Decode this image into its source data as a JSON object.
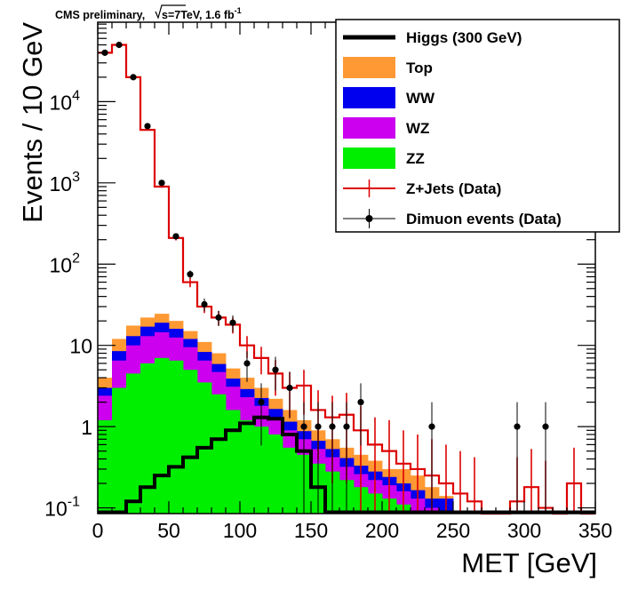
{
  "chart_data": {
    "type": "histogram-stacked",
    "header": "CMS preliminary,",
    "header_lumi": "s=7TeV, 1.6 fb",
    "header_lumi_sup": "-1",
    "xlabel": "MET [GeV]",
    "ylabel": "Events / 10 GeV",
    "xlim": [
      0,
      350
    ],
    "ylim": [
      0.085,
      95000
    ],
    "yscale": "log",
    "x_ticks": [
      0,
      50,
      100,
      150,
      200,
      250,
      300,
      350
    ],
    "x_tick_labels": [
      "0",
      "50",
      "100",
      "150",
      "200",
      "250",
      "300",
      "350"
    ],
    "y_tick_labels": [
      {
        "value": 0.1,
        "base": "10",
        "exp": "-1"
      },
      {
        "value": 1,
        "base": "1",
        "exp": ""
      },
      {
        "value": 10,
        "base": "10",
        "exp": ""
      },
      {
        "value": 100,
        "base": "10",
        "exp": "2"
      },
      {
        "value": 1000,
        "base": "10",
        "exp": "3"
      },
      {
        "value": 10000,
        "base": "10",
        "exp": "4"
      }
    ],
    "bin_edges": [
      0,
      10,
      20,
      30,
      40,
      50,
      60,
      70,
      80,
      90,
      100,
      110,
      120,
      130,
      140,
      150,
      160,
      170,
      180,
      190,
      200,
      210,
      220,
      230,
      240,
      250,
      260,
      270,
      280,
      290,
      300,
      310,
      320,
      330,
      340,
      350
    ],
    "stack": [
      {
        "name": "ZZ",
        "color": "#00ee00",
        "values": [
          1.2,
          3.0,
          4.5,
          6.0,
          7.0,
          6.5,
          5.0,
          3.5,
          2.5,
          1.6,
          1.2,
          1.0,
          0.8,
          0.55,
          0.45,
          0.35,
          0.28,
          0.22,
          0.18,
          0.15,
          0.13,
          0.11,
          0.09,
          0.07,
          0.0,
          0,
          0,
          0,
          0,
          0,
          0,
          0,
          0,
          0,
          0
        ]
      },
      {
        "name": "WZ",
        "color": "#cc00ee",
        "values": [
          1.2,
          3.5,
          5.5,
          7.0,
          7.5,
          6.0,
          4.5,
          3.0,
          2.2,
          1.5,
          1.1,
          0.8,
          0.5,
          0.35,
          0.25,
          0.18,
          0.14,
          0.1,
          0.08,
          0.07,
          0.06,
          0.05,
          0.04,
          0.03,
          0.07,
          0,
          0,
          0,
          0,
          0,
          0,
          0,
          0,
          0,
          0
        ]
      },
      {
        "name": "WW",
        "color": "#0000ee",
        "values": [
          0.6,
          2.0,
          3.0,
          4.0,
          4.5,
          3.5,
          2.5,
          1.8,
          1.2,
          0.8,
          0.6,
          0.45,
          0.35,
          0.25,
          0.18,
          0.14,
          0.11,
          0.09,
          0.07,
          0.06,
          0.05,
          0.04,
          0.035,
          0.03,
          0.06,
          0,
          0,
          0,
          0,
          0,
          0,
          0,
          0,
          0,
          0
        ]
      },
      {
        "name": "Top",
        "color": "#ff9933",
        "values": [
          1.0,
          3.5,
          4.5,
          5.0,
          5.5,
          4.0,
          3.0,
          2.7,
          2.1,
          1.3,
          1.1,
          0.75,
          0.55,
          0.45,
          0.32,
          0.23,
          0.17,
          0.14,
          0.12,
          0.1,
          0.06,
          0.1,
          0.085,
          0.05,
          0.01,
          0,
          0,
          0,
          0,
          0,
          0,
          0,
          0,
          0,
          0
        ]
      }
    ],
    "zjets": {
      "name": "Z+Jets (Data)",
      "color": "#dd0000",
      "values": [
        40000,
        50000,
        20000,
        4500,
        900,
        210,
        60,
        30,
        22,
        18,
        10,
        7,
        4.5,
        3,
        3.2,
        1.6,
        1.3,
        1.4,
        0.9,
        0.6,
        0.5,
        0.35,
        0.3,
        0.25,
        0.2,
        0.15,
        0.12,
        0,
        0,
        0.12,
        0.18,
        0.1,
        0,
        0.2,
        0
      ],
      "errors": [
        200,
        220,
        140,
        70,
        30,
        14,
        8,
        5,
        4.5,
        4,
        3,
        2.6,
        2.1,
        1.7,
        1.8,
        1.2,
        1.1,
        1.2,
        0.9,
        0.7,
        0.7,
        0.55,
        0.5,
        0.45,
        0.4,
        0.35,
        0.3,
        0,
        0,
        0.3,
        0.35,
        0.28,
        0,
        0.35,
        0
      ]
    },
    "higgs": {
      "name": "Higgs (300 GeV)",
      "color": "#000000",
      "values": [
        0,
        0,
        0.12,
        0.18,
        0.25,
        0.32,
        0.42,
        0.55,
        0.7,
        0.9,
        1.1,
        1.3,
        1.25,
        0.8,
        0.5,
        0.18,
        0,
        0,
        0,
        0,
        0,
        0,
        0,
        0,
        0,
        0,
        0,
        0,
        0,
        0,
        0,
        0,
        0,
        0,
        0
      ]
    },
    "data_points": {
      "name": "Dimuon events (Data)",
      "x": [
        5,
        15,
        25,
        35,
        45,
        55,
        65,
        75,
        85,
        95,
        105,
        115,
        125,
        135,
        145,
        155,
        165,
        175,
        185,
        235,
        295,
        315
      ],
      "y": [
        40000,
        50000,
        20000,
        5000,
        1000,
        220,
        75,
        32,
        22,
        19,
        6,
        2,
        5,
        3,
        1,
        1,
        1,
        1,
        2,
        1,
        1,
        1
      ]
    },
    "legend": {
      "position": "top-right",
      "entries": [
        {
          "label": "Higgs (300 GeV)",
          "kind": "line",
          "color": "#000000"
        },
        {
          "label": "Top",
          "kind": "fill",
          "color": "#ff9933"
        },
        {
          "label": "WW",
          "kind": "fill",
          "color": "#0000ee"
        },
        {
          "label": "WZ",
          "kind": "fill",
          "color": "#cc00ee"
        },
        {
          "label": "ZZ",
          "kind": "fill",
          "color": "#00ee00"
        },
        {
          "label": "Z+Jets (Data)",
          "kind": "errline",
          "color": "#dd0000"
        },
        {
          "label": "Dimuon events (Data)",
          "kind": "marker",
          "color": "#000000"
        }
      ]
    }
  }
}
